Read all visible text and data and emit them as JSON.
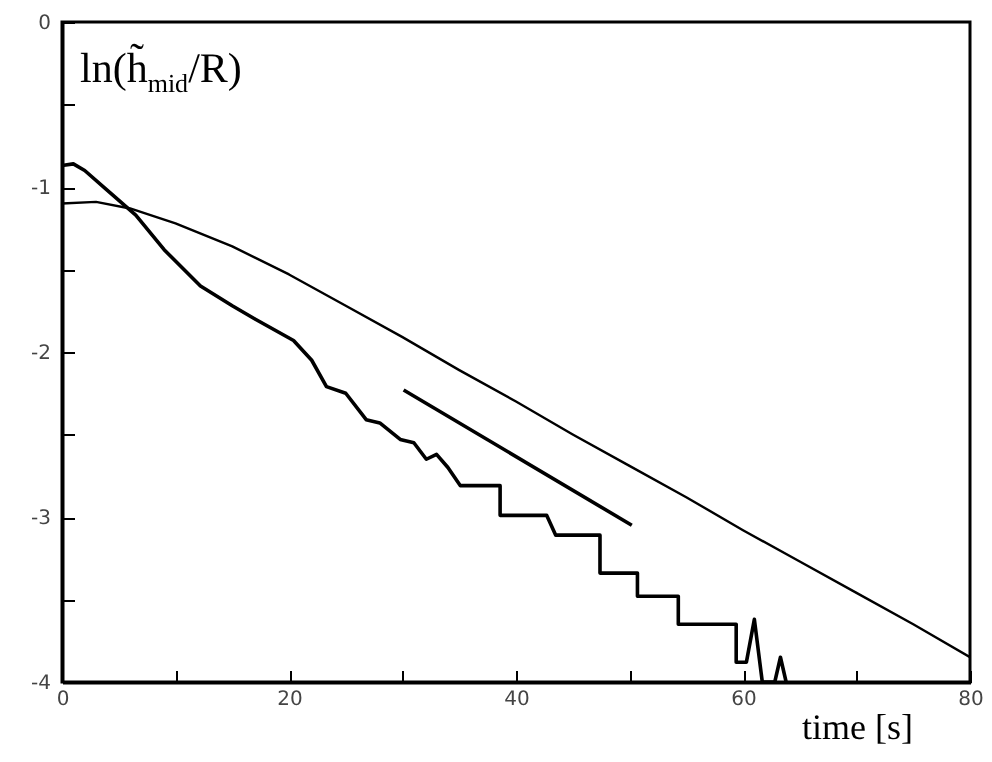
{
  "chart_data": {
    "type": "line",
    "ylabel": "ln(h̃$_{mid}$/R)",
    "xlabel": "time [s]",
    "xlim": [
      0,
      80
    ],
    "xticks": [
      0,
      {
        "value": 10,
        "label": null
      },
      20,
      {
        "value": 30,
        "label": null
      },
      40,
      {
        "value": 50,
        "label": null
      },
      60,
      {
        "value": 70,
        "label": null
      },
      80
    ],
    "ylim": [
      -4,
      0
    ],
    "yticks": [
      -4,
      {
        "value": -3.5,
        "label": null
      },
      -3,
      {
        "value": -2.5,
        "label": null
      },
      -2,
      {
        "value": -1.5,
        "label": null
      },
      -1,
      {
        "value": -0.5,
        "label": null
      },
      0
    ],
    "series": [
      {
        "color": "#000000",
        "x": [
          0,
          1,
          2,
          4,
          6.5,
          9,
          12.2,
          15,
          17,
          20.4,
          22,
          23.3,
          25,
          26.8,
          28,
          29.8,
          31,
          32.1,
          33,
          34,
          35.1,
          38.6,
          38.6,
          42.7,
          43.5,
          47.4,
          47.4,
          50.7,
          50.7,
          54.3,
          54.3,
          59.4,
          59.4,
          60.3,
          61,
          61.7,
          62.8,
          63.3,
          63.8
        ],
        "values": [
          -0.87,
          -0.86,
          -0.9,
          -1.02,
          -1.17,
          -1.38,
          -1.6,
          -1.72,
          -1.8,
          -1.93,
          -2.05,
          -2.21,
          -2.25,
          -2.41,
          -2.43,
          -2.53,
          -2.55,
          -2.65,
          -2.62,
          -2.7,
          -2.81,
          -2.81,
          -2.99,
          -2.99,
          -3.11,
          -3.11,
          -3.34,
          -3.34,
          -3.48,
          -3.48,
          -3.65,
          -3.65,
          -3.88,
          -3.88,
          -3.62,
          -4,
          -4,
          -3.85,
          -4
        ]
      },
      {
        "color": "#000000",
        "x": [
          0,
          3,
          6,
          10,
          15,
          20,
          25,
          30,
          35,
          40,
          45,
          50,
          55,
          60,
          65,
          70,
          75,
          80
        ],
        "values": [
          -1.1,
          -1.09,
          -1.13,
          -1.22,
          -1.36,
          -1.53,
          -1.72,
          -1.91,
          -2.11,
          -2.3,
          -2.5,
          -2.69,
          -2.88,
          -3.08,
          -3.27,
          -3.46,
          -3.65,
          -3.85
        ]
      },
      {
        "color": "#000000",
        "x": [
          30.1,
          50.2
        ],
        "values": [
          -2.23,
          -3.05
        ]
      }
    ]
  }
}
